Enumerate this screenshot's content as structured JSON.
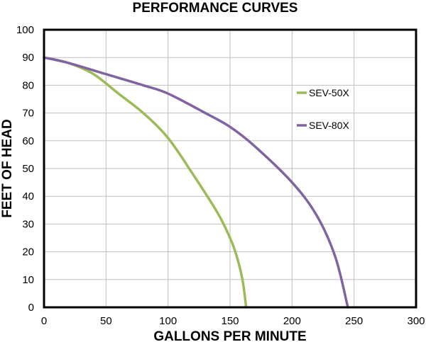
{
  "chart_data": {
    "type": "line",
    "title": "PERFORMANCE CURVES",
    "xlabel": "GALLONS PER MINUTE",
    "ylabel": "FEET OF HEAD",
    "xlim": [
      0,
      300
    ],
    "ylim": [
      0,
      100
    ],
    "xticks": [
      0,
      50,
      100,
      150,
      200,
      250,
      300
    ],
    "yticks": [
      0,
      10,
      20,
      30,
      40,
      50,
      60,
      70,
      80,
      90,
      100
    ],
    "grid": true,
    "legend_position": "right",
    "series": [
      {
        "name": "SEV-50X",
        "color": "#9BBB59",
        "points": [
          [
            0,
            90
          ],
          [
            20,
            88
          ],
          [
            40,
            84
          ],
          [
            60,
            77
          ],
          [
            80,
            70
          ],
          [
            100,
            61
          ],
          [
            120,
            48
          ],
          [
            140,
            34
          ],
          [
            150,
            25
          ],
          [
            155,
            19
          ],
          [
            160,
            10
          ],
          [
            163,
            0
          ]
        ]
      },
      {
        "name": "SEV-80X",
        "color": "#8064A2",
        "points": [
          [
            0,
            90
          ],
          [
            20,
            88
          ],
          [
            50,
            84
          ],
          [
            80,
            80
          ],
          [
            100,
            77
          ],
          [
            130,
            70
          ],
          [
            150,
            65
          ],
          [
            170,
            58
          ],
          [
            200,
            45
          ],
          [
            220,
            33
          ],
          [
            235,
            18
          ],
          [
            245,
            0
          ]
        ]
      }
    ]
  }
}
